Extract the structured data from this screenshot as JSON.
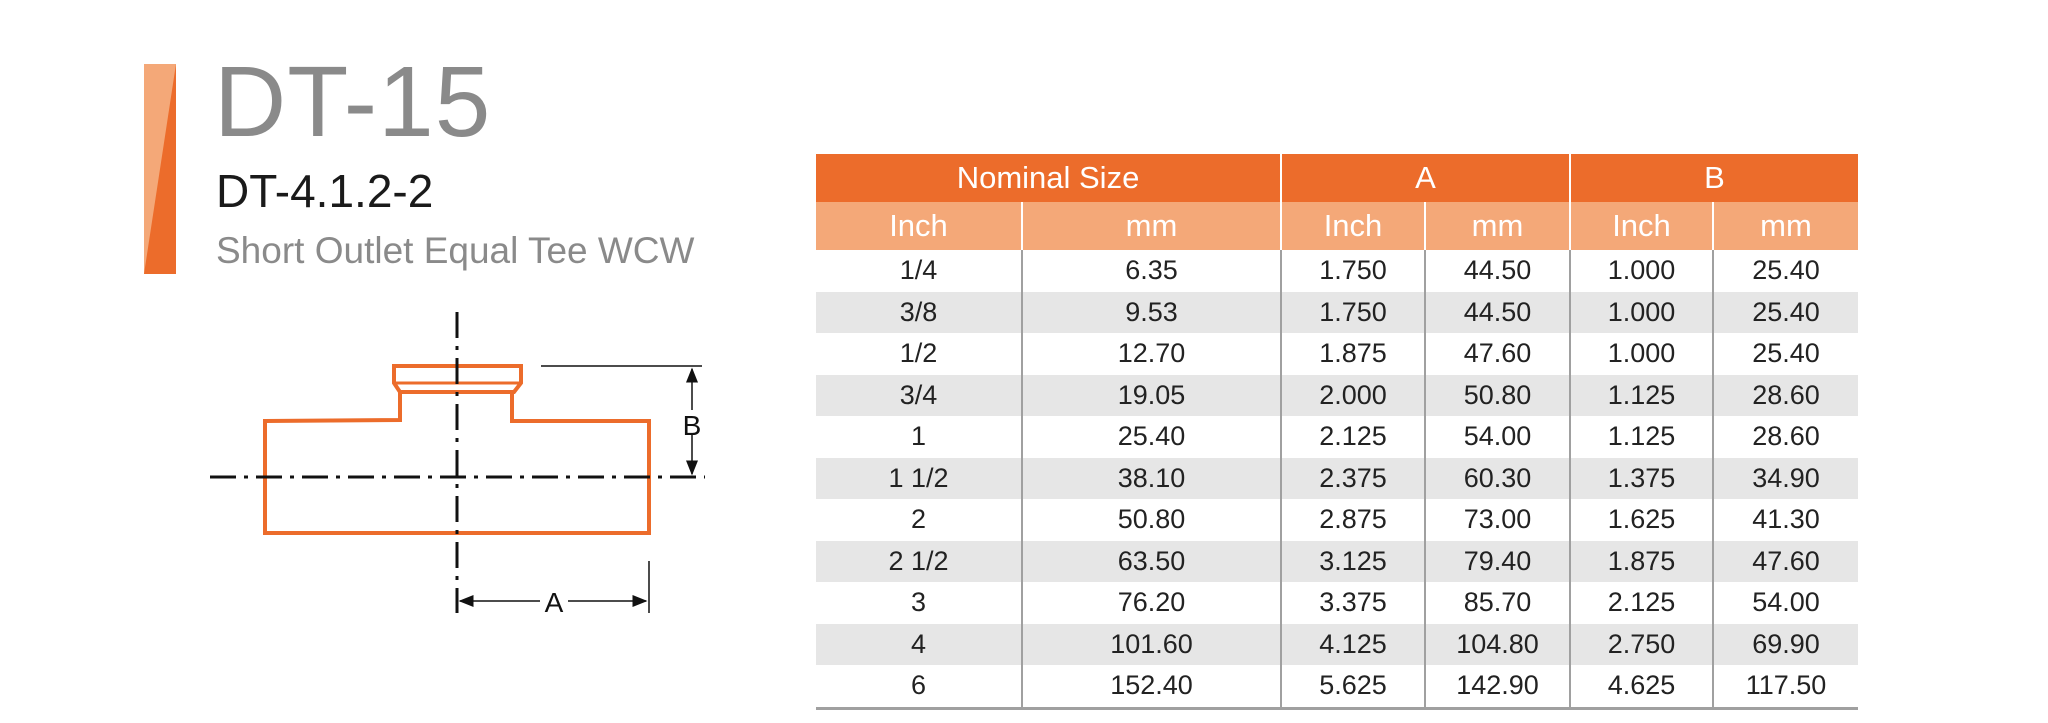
{
  "header": {
    "model": "DT-15",
    "code": "DT-4.1.2-2",
    "description": "Short Outlet Equal Tee WCW"
  },
  "colors": {
    "accent": "#ec6c2b",
    "accent_light": "#f4a878",
    "row_alt": "#e6e6e6"
  },
  "diagram": {
    "label_a": "A",
    "label_b": "B"
  },
  "table": {
    "groups": [
      "Nominal Size",
      "A",
      "B"
    ],
    "subheaders": [
      "Inch",
      "mm",
      "Inch",
      "mm",
      "Inch",
      "mm"
    ],
    "rows": [
      [
        "1/4",
        "6.35",
        "1.750",
        "44.50",
        "1.000",
        "25.40"
      ],
      [
        "3/8",
        "9.53",
        "1.750",
        "44.50",
        "1.000",
        "25.40"
      ],
      [
        "1/2",
        "12.70",
        "1.875",
        "47.60",
        "1.000",
        "25.40"
      ],
      [
        "3/4",
        "19.05",
        "2.000",
        "50.80",
        "1.125",
        "28.60"
      ],
      [
        "1",
        "25.40",
        "2.125",
        "54.00",
        "1.125",
        "28.60"
      ],
      [
        "1 1/2",
        "38.10",
        "2.375",
        "60.30",
        "1.375",
        "34.90"
      ],
      [
        "2",
        "50.80",
        "2.875",
        "73.00",
        "1.625",
        "41.30"
      ],
      [
        "2 1/2",
        "63.50",
        "3.125",
        "79.40",
        "1.875",
        "47.60"
      ],
      [
        "3",
        "76.20",
        "3.375",
        "85.70",
        "2.125",
        "54.00"
      ],
      [
        "4",
        "101.60",
        "4.125",
        "104.80",
        "2.750",
        "69.90"
      ],
      [
        "6",
        "152.40",
        "5.625",
        "142.90",
        "4.625",
        "117.50"
      ]
    ]
  }
}
